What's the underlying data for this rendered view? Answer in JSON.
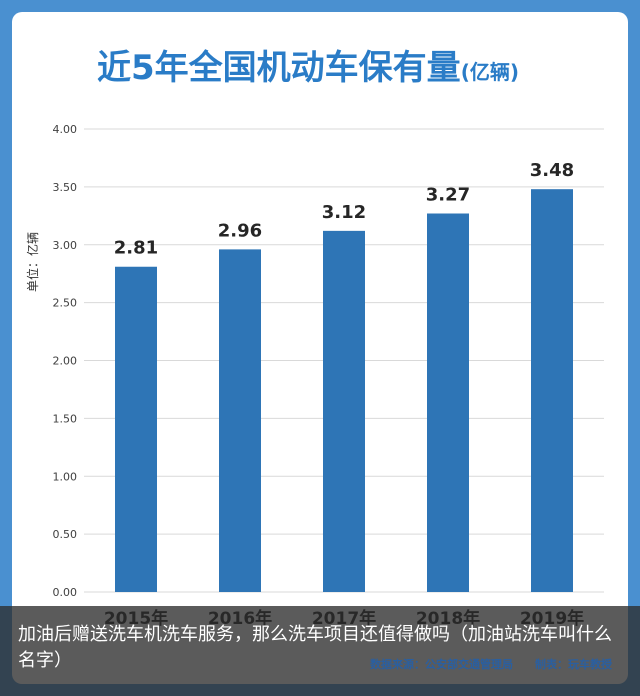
{
  "chart_data": {
    "type": "bar",
    "title": "近5年全国机动车保有量",
    "title_unit": "(亿辆)",
    "ylabel": "单位：亿辆",
    "categories": [
      "2015年",
      "2016年",
      "2017年",
      "2018年",
      "2019年"
    ],
    "values": [
      2.81,
      2.96,
      3.12,
      3.27,
      3.48
    ],
    "value_labels": [
      "2.81",
      "2.96",
      "3.12",
      "3.27",
      "3.48"
    ],
    "yticks": [
      "0.00",
      "0.50",
      "1.00",
      "1.50",
      "2.00",
      "2.50",
      "3.00",
      "3.50",
      "4.00"
    ],
    "ylim": [
      0,
      4
    ],
    "grid": true,
    "bar_color": "#2e75b6"
  },
  "footer": {
    "source": "数据来源：公安部交通管理局",
    "maker": "制表：玩车教授"
  },
  "caption": "加油后赠送洗车机洗车服务，那么洗车项目还值得做吗（加油站洗车叫什么名字）"
}
